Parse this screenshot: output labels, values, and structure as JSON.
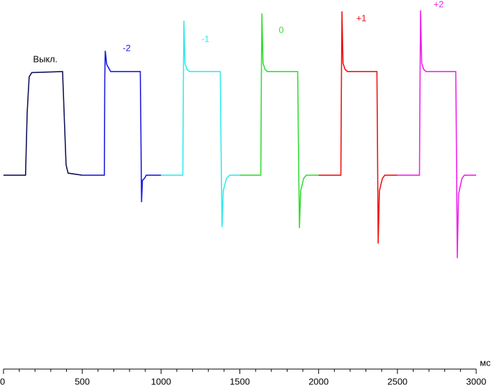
{
  "chart_data": {
    "type": "line",
    "xlabel": "мс",
    "xlim": [
      0,
      3000
    ],
    "xticks": [
      0,
      500,
      1000,
      1500,
      2000,
      2500,
      3000
    ],
    "xminorticks": [
      100,
      200,
      300,
      400,
      600,
      700,
      800,
      900,
      1100,
      1200,
      1300,
      1400,
      1600,
      1700,
      1800,
      1900,
      2100,
      2200,
      2300,
      2400,
      2600,
      2700,
      2800,
      2900
    ],
    "ylim": [
      -187,
      169
    ],
    "series": [
      {
        "name": "Выкл.",
        "color": "#10105a",
        "label_color": "#000000",
        "x": [
          0,
          140,
          150,
          163,
          180,
          375,
          385,
          397,
          410,
          500
        ],
        "values": [
          0,
          0,
          60,
          95,
          99,
          100,
          60,
          10,
          2,
          0
        ]
      },
      {
        "name": "-2",
        "color": "#1a1ae0",
        "label_color": "#1a1ae0",
        "x": [
          500,
          640,
          643,
          646,
          655,
          680,
          868,
          872,
          876,
          882,
          895,
          906,
          1000
        ],
        "values": [
          0,
          0,
          95,
          120,
          107,
          100,
          100,
          40,
          -26,
          -5,
          -3,
          0,
          0
        ]
      },
      {
        "name": "-1",
        "color": "#33eaea",
        "label_color": "#33eaea",
        "x": [
          1000,
          1138,
          1142,
          1145,
          1152,
          1165,
          1180,
          1376,
          1380,
          1387,
          1395,
          1415,
          1436,
          1500
        ],
        "values": [
          0,
          0,
          100,
          149,
          108,
          102,
          100,
          100,
          40,
          -50,
          -15,
          -3,
          0,
          0
        ]
      },
      {
        "name": "0",
        "color": "#33dd33",
        "label_color": "#33dd33",
        "x": [
          1500,
          1633,
          1637,
          1640,
          1647,
          1660,
          1675,
          1867,
          1871,
          1878,
          1886,
          1905,
          1922,
          2000
        ],
        "values": [
          0,
          0,
          100,
          156,
          108,
          102,
          100,
          100,
          40,
          -51,
          -15,
          -3,
          0,
          0
        ]
      },
      {
        "name": "+1",
        "color": "#ee1111",
        "label_color": "#ee1111",
        "x": [
          2000,
          2141,
          2145,
          2148,
          2155,
          2168,
          2183,
          2370,
          2373,
          2378,
          2386,
          2405,
          2420,
          2500
        ],
        "values": [
          0,
          0,
          100,
          158,
          108,
          102,
          100,
          100,
          40,
          -66,
          -15,
          -3,
          0,
          0
        ]
      },
      {
        "name": "+2",
        "color": "#ee22ee",
        "label_color": "#ee22ee",
        "x": [
          2500,
          2640,
          2644,
          2647,
          2654,
          2667,
          2682,
          2870,
          2874,
          2880,
          2888,
          2910,
          2925,
          3000
        ],
        "values": [
          0,
          0,
          100,
          159,
          108,
          102,
          100,
          100,
          40,
          -80,
          -18,
          -3,
          0,
          0
        ]
      }
    ]
  }
}
